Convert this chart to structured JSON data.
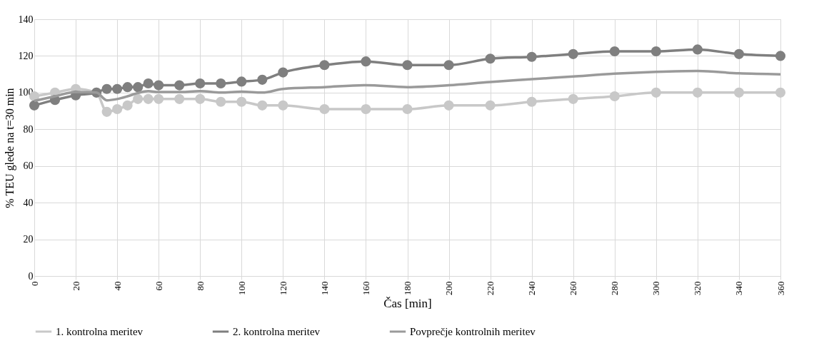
{
  "chart_data": {
    "type": "line",
    "xlabel": "Čas [min]",
    "ylabel": "% TEU glede na t=30 min",
    "x": [
      0,
      10,
      20,
      30,
      35,
      40,
      45,
      50,
      55,
      60,
      70,
      80,
      90,
      100,
      110,
      120,
      140,
      160,
      180,
      200,
      220,
      240,
      260,
      280,
      300,
      320,
      340,
      360
    ],
    "series": [
      {
        "name": "1. kontrolna meritev",
        "color": "#c8c8c8",
        "marker": "circle",
        "values": [
          98,
          100,
          102,
          100,
          89.5,
          91,
          93,
          96.5,
          96.5,
          96.5,
          96.5,
          96.5,
          95,
          95,
          93,
          93,
          91,
          91,
          91,
          93,
          93,
          95,
          96.5,
          98,
          100,
          100,
          100,
          100
        ]
      },
      {
        "name": "2. kontrolna meritev",
        "color": "#7f7f7f",
        "marker": "circle",
        "values": [
          93,
          96,
          98.5,
          100,
          102,
          102,
          103,
          103,
          105,
          104,
          104,
          105,
          105,
          106,
          107,
          111,
          115,
          117,
          115,
          115,
          118.5,
          119.5,
          121,
          122.5,
          122.5,
          123.5,
          121,
          120
        ]
      },
      {
        "name": "Povprečje kontrolnih meritev",
        "color": "#9a9a9a",
        "marker": "none",
        "values": [
          95.5,
          98,
          100.3,
          100,
          95.8,
          96.5,
          98,
          99.8,
          100.8,
          100.3,
          100.3,
          100.8,
          100,
          100.5,
          100,
          102,
          103,
          104,
          103,
          104,
          105.8,
          107.3,
          108.8,
          110.3,
          111.3,
          111.8,
          110.5,
          110
        ]
      }
    ],
    "xlim": [
      0,
      360
    ],
    "xticks": [
      0,
      20,
      40,
      60,
      80,
      100,
      120,
      140,
      160,
      180,
      200,
      220,
      240,
      260,
      280,
      300,
      320,
      340,
      360
    ],
    "ylim": [
      0,
      140
    ],
    "yticks": [
      0,
      20,
      40,
      60,
      80,
      100,
      120,
      140
    ],
    "grid": true,
    "legend": "bottom",
    "line_style": "solid"
  }
}
